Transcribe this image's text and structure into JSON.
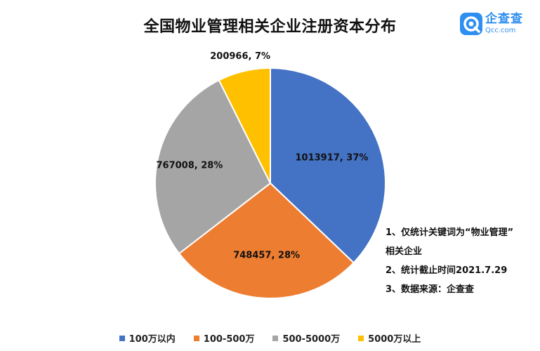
{
  "brand": {
    "name": "企查查",
    "url": "Qcc.com",
    "icon": "qcc-logo-icon",
    "color": "#2f8ff0"
  },
  "chart_data": {
    "type": "pie",
    "title": "全国物业管理相关企业注册资本分布",
    "categories": [
      "100万以内",
      "100-500万",
      "500-5000万",
      "5000万以上"
    ],
    "values": [
      1013917,
      748457,
      767008,
      200966
    ],
    "percents": [
      37,
      28,
      28,
      7
    ],
    "data_labels": [
      "1013917, 37%",
      "748457, 28%",
      "767008, 28%",
      "200966, 7%"
    ],
    "colors": [
      "#4472c4",
      "#ed7d31",
      "#a5a5a5",
      "#ffc000"
    ],
    "legend_position": "bottom",
    "start_angle": "12 o'clock, clockwise"
  },
  "notes": [
    "1、仅统计关键词为“物业管理”",
    "相关企业",
    "2、统计截止时间2021.7.29",
    "3、数据来源：企查查"
  ]
}
